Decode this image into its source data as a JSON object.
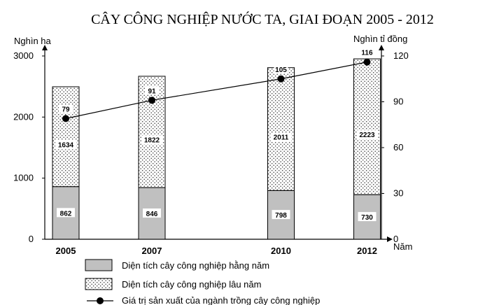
{
  "chart_data": {
    "type": "bar",
    "title": "CÂY CÔNG NGHIỆP NƯỚC TA, GIAI ĐOẠN 2005 - 2012",
    "categories": [
      "2005",
      "2007",
      "2010",
      "2012"
    ],
    "x_positions": [
      2005,
      2007,
      2010,
      2012
    ],
    "stacked": true,
    "series": [
      {
        "name": "Diện tích cây công nghiệp hằng năm",
        "axis": "left",
        "values": [
          862,
          846,
          798,
          730
        ],
        "fill": "#c0c0c0"
      },
      {
        "name": "Diện tích cây công nghiệp lâu năm",
        "axis": "left",
        "values": [
          1634,
          1822,
          2011,
          2223
        ],
        "fill": "dots"
      },
      {
        "name": "Giá trị sản xuất của ngành trồng cây công nghiệp",
        "axis": "right",
        "type": "line",
        "values": [
          79,
          91,
          105,
          116
        ]
      }
    ],
    "ylabel_left": "Nghìn ha",
    "ylabel_right": "Nghìn tỉ đồng",
    "xlabel": "Năm",
    "ylim_left": [
      0,
      3000
    ],
    "yticks_left": [
      "0",
      "1000",
      "2000",
      "3000"
    ],
    "ylim_right": [
      0,
      120
    ],
    "yticks_right": [
      "0",
      "30",
      "60",
      "90",
      "120"
    ],
    "grid": false,
    "legend_position": "bottom-left"
  }
}
